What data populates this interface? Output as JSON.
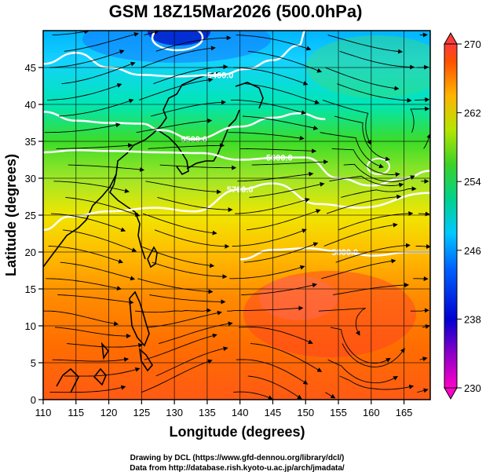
{
  "chart_data": {
    "type": "heatmap",
    "title": "GSM 18Z15Mar2026 (500.0hPa)",
    "xlabel": "Longitude (degrees)",
    "ylabel": "Latitude  (degrees)",
    "xlim": [
      110,
      169
    ],
    "ylim": [
      0,
      50
    ],
    "xticks": [
      "110",
      "115",
      "120",
      "125",
      "130",
      "135",
      "140",
      "145",
      "150",
      "155",
      "160",
      "165"
    ],
    "yticks": [
      "0",
      "5",
      "10",
      "15",
      "20",
      "25",
      "30",
      "35",
      "40",
      "45"
    ],
    "xtick_values": [
      110,
      115,
      120,
      125,
      130,
      135,
      140,
      145,
      150,
      155,
      160,
      165
    ],
    "ytick_values": [
      0,
      5,
      10,
      15,
      20,
      25,
      30,
      35,
      40,
      45
    ],
    "field": "temperature (K), shaded",
    "colorbar": {
      "min": 230,
      "max": 270,
      "ticks": [
        "230",
        "238",
        "246",
        "254",
        "262",
        "270"
      ],
      "tick_values": [
        230,
        238,
        246,
        254,
        262,
        270
      ]
    },
    "contours": [
      {
        "label": "5400.0",
        "points": [
          [
            110,
            45.5
          ],
          [
            115,
            47
          ],
          [
            120,
            45
          ],
          [
            125,
            44
          ],
          [
            130,
            43.8
          ],
          [
            137,
            44
          ],
          [
            141,
            44.8
          ],
          [
            145,
            46
          ],
          [
            149,
            48
          ],
          [
            150,
            50
          ]
        ]
      },
      {
        "label": "5500.0",
        "points": [
          [
            110,
            39
          ],
          [
            115,
            37.8
          ],
          [
            120,
            37.5
          ],
          [
            125,
            37.4
          ],
          [
            128,
            36.5
          ],
          [
            133,
            35.3
          ],
          [
            140,
            37
          ],
          [
            145,
            38.2
          ],
          [
            149,
            38.8
          ],
          [
            153,
            38
          ]
        ]
      },
      {
        "label": "5600.0",
        "points": [
          [
            110,
            33.5
          ],
          [
            115,
            33.8
          ],
          [
            120,
            33.7
          ],
          [
            128,
            33.5
          ],
          [
            134,
            33.4
          ],
          [
            140,
            32.5
          ],
          [
            146,
            32.8
          ],
          [
            150,
            32.8
          ],
          [
            155,
            30
          ],
          [
            160,
            29
          ],
          [
            165,
            30
          ],
          [
            169,
            31
          ]
        ]
      },
      {
        "label": "5700.0",
        "points": [
          [
            110,
            23
          ],
          [
            114,
            24.8
          ],
          [
            120,
            25.5
          ],
          [
            127,
            26
          ],
          [
            133,
            25.5
          ],
          [
            140,
            28.5
          ],
          [
            145,
            29.3
          ],
          [
            152,
            26.5
          ],
          [
            158,
            26
          ],
          [
            169,
            28
          ]
        ]
      },
      {
        "label": "5800.0",
        "points": [
          [
            140,
            19
          ],
          [
            145,
            20.3
          ],
          [
            150,
            20.5
          ],
          [
            156,
            20
          ],
          [
            160,
            19.5
          ],
          [
            166,
            20
          ],
          [
            169,
            20
          ]
        ]
      }
    ],
    "closed_contours": [
      {
        "center": [
          129.5,
          49
        ],
        "note": "low at top edge"
      },
      {
        "center": [
          163,
          34
        ],
        "note": "small closed contour"
      }
    ],
    "streamlines": "wind flow arrows, predominantly westerly"
  },
  "credits": {
    "line1": "Drawing by DCL (https://www.gfd-dennou.org/library/dcl/)",
    "line2": "Data from http://database.rish.kyoto-u.ac.jp/arch/jmadata/"
  }
}
